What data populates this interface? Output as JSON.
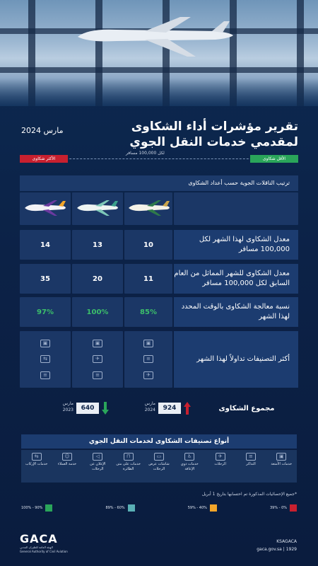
{
  "title": {
    "line1": "تقرير مؤشرات أداء الشكاوى",
    "line2": "لمقدمي خدمات النقل الجوي"
  },
  "date": "مارس 2024",
  "scale": {
    "most": "الأكثر شكاوى",
    "least": "الأقل شكاوى",
    "per": "لكل 100,000 مسافر"
  },
  "table": {
    "header": "ترتيب الناقلات الجوية حسب أعداد الشكاوى",
    "rows": [
      {
        "label": "معدل الشكاوى لهذا الشهر لكل 100,000 مسافر",
        "values": [
          "10",
          "13",
          "14"
        ]
      },
      {
        "label": "معدل الشكاوى للشهر المماثل من العام السابق لكل 100,000 مسافر",
        "values": [
          "11",
          "20",
          "35"
        ]
      },
      {
        "label": "نسبة معالجة الشكاوى بالوقت المحدد لهذا الشهر",
        "values": [
          "85%",
          "100%",
          "97%"
        ]
      },
      {
        "label": "أكثر التصنيفات تداولاً لهذا الشهر",
        "values": []
      }
    ]
  },
  "totals": {
    "label": "مجموع الشكاوى",
    "current": {
      "period": "مارس 2024",
      "value": "924"
    },
    "previous": {
      "period": "مارس 2023",
      "value": "640"
    }
  },
  "categories": {
    "title": "أنواع تصنيفات الشكاوى لخدمات النقل الجوي",
    "items": [
      {
        "icon": "bag-icon",
        "label": "خدمات الأمتعة"
      },
      {
        "icon": "ticket-icon",
        "label": "التذاكر"
      },
      {
        "icon": "plane-icon",
        "label": "الرحلات"
      },
      {
        "icon": "wheelchair-icon",
        "label": "خدمات ذوي الإعاقة"
      },
      {
        "icon": "screen-icon",
        "label": "شاشات عرض الرحلات"
      },
      {
        "icon": "seat-icon",
        "label": "خدمات على متن الطائرة"
      },
      {
        "icon": "megaphone-icon",
        "label": "الإعلان عن الرحلات"
      },
      {
        "icon": "person-icon",
        "label": "خدمة العملاء"
      },
      {
        "icon": "boarding-icon",
        "label": "خدمات الإركاب"
      }
    ]
  },
  "note": "*جميع الإحصائيات المذكورة تم احتسابها بتاريخ 1 أبريل",
  "legend": [
    {
      "color": "#c8202f",
      "label": "39% - 0%"
    },
    {
      "color": "#f2a52a",
      "label": "59% - 40%"
    },
    {
      "color": "#5ab0b5",
      "label": "89% - 60%"
    },
    {
      "color": "#2aa55a",
      "label": "100% - 90%"
    }
  ],
  "footer": {
    "brand": "GACA",
    "brand_ar": "الهيئة العامة للطيران المدني",
    "brand_en": "General Authority of Civil Aviation",
    "social": "KSAGACA",
    "site": "gaca.gov.sa",
    "phone": "1929"
  },
  "colors": {
    "red": "#c8202f",
    "green": "#2aa55a",
    "navy": "#0c2247"
  }
}
